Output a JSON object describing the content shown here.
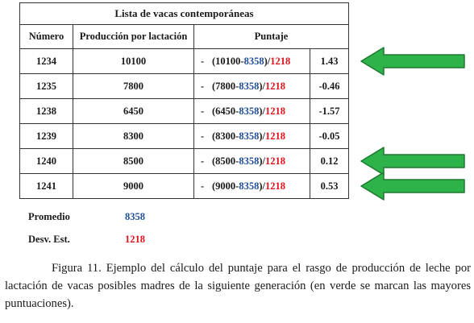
{
  "table": {
    "title": "Lista de vacas contemporáneas",
    "headers": [
      "Número",
      "Producción por lactación",
      "Puntaje"
    ],
    "minus_sign": "-",
    "rows": [
      {
        "numero": "1234",
        "produccion": "10100",
        "open": "(10100-",
        "mean": "8358",
        "mid": ")/",
        "sd": "1218",
        "score": "1.43",
        "highlight": true
      },
      {
        "numero": "1235",
        "produccion": "7800",
        "open": "(7800-",
        "mean": "8358",
        "mid": ")/",
        "sd": "1218",
        "score": "-0.46",
        "highlight": false
      },
      {
        "numero": "1238",
        "produccion": "6450",
        "open": "(6450-",
        "mean": "8358",
        "mid": ")/",
        "sd": "1218",
        "score": "-1.57",
        "highlight": false
      },
      {
        "numero": "1239",
        "produccion": "8300",
        "open": "(8300-",
        "mean": "8358",
        "mid": ")/",
        "sd": "1218",
        "score": "-0.05",
        "highlight": false
      },
      {
        "numero": "1240",
        "produccion": "8500",
        "open": "(8500-",
        "mean": "8358",
        "mid": ")/",
        "sd": "1218",
        "score": "0.12",
        "highlight": true
      },
      {
        "numero": "1241",
        "produccion": "9000",
        "open": "(9000-",
        "mean": "8358",
        "mid": ")/",
        "sd": "1218",
        "score": "0.53",
        "highlight": true
      }
    ]
  },
  "summary": {
    "promedio_label": "Promedio",
    "promedio_value": "8358",
    "desv_label": "Desv. Est.",
    "desv_value": "1218"
  },
  "caption": "Figura 11. Ejemplo del cálculo del puntaje para el rasgo de producción de leche por lactación de vacas posibles madres de la siguiente generación (en verde se marcan las mayores puntuaciones).",
  "colors": {
    "mean": "#1f4e9a",
    "sd": "#e0111a",
    "arrow_fill": "#2db34a",
    "arrow_stroke": "#1e7a31"
  },
  "icons": {
    "highlight_arrow": "left-arrow-icon"
  }
}
